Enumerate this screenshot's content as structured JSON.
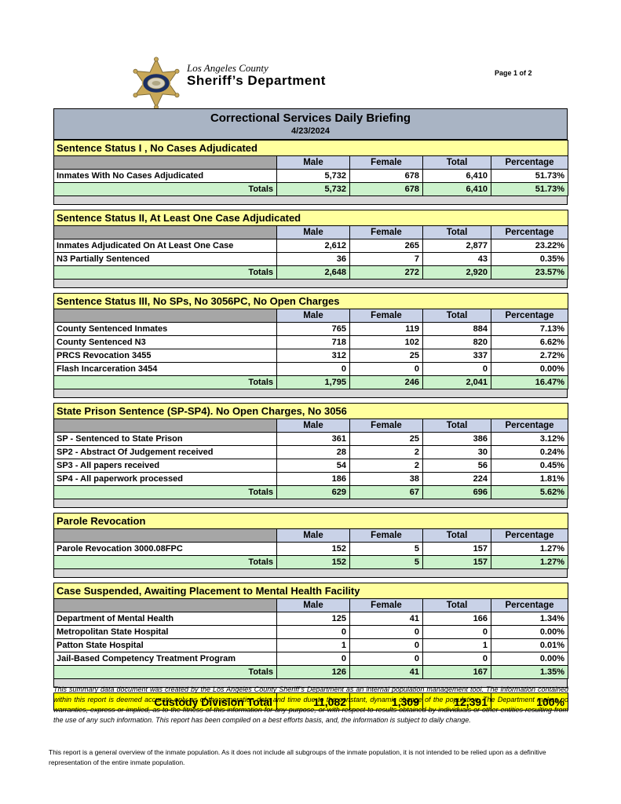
{
  "page_label": "Page 1 of 2",
  "letterhead": {
    "agency_line1": "Los Angeles County",
    "agency_line2": "Sheriff’s Department",
    "logo": "sheriff-star-badge"
  },
  "banner": {
    "title": "Correctional Services Daily Briefing",
    "date": "4/23/2024"
  },
  "columns": [
    "Male",
    "Female",
    "Total",
    "Percentage"
  ],
  "totals_label": "Totals",
  "sections": [
    {
      "title": "Sentence Status I , No Cases Adjudicated",
      "rows": [
        {
          "label": "Inmates With No Cases Adjudicated",
          "male": "5,732",
          "female": "678",
          "total": "6,410",
          "pct": "51.73%"
        }
      ],
      "totals": {
        "male": "5,732",
        "female": "678",
        "total": "6,410",
        "pct": "51.73%"
      }
    },
    {
      "title": "Sentence Status II, At Least One Case Adjudicated",
      "rows": [
        {
          "label": "Inmates Adjudicated On At Least One Case",
          "male": "2,612",
          "female": "265",
          "total": "2,877",
          "pct": "23.22%"
        },
        {
          "label": "N3 Partially Sentenced",
          "male": "36",
          "female": "7",
          "total": "43",
          "pct": "0.35%"
        }
      ],
      "totals": {
        "male": "2,648",
        "female": "272",
        "total": "2,920",
        "pct": "23.57%"
      }
    },
    {
      "title": "Sentence Status III, No SPs, No 3056PC, No Open Charges",
      "rows": [
        {
          "label": "County Sentenced Inmates",
          "male": "765",
          "female": "119",
          "total": "884",
          "pct": "7.13%"
        },
        {
          "label": "County Sentenced N3",
          "male": "718",
          "female": "102",
          "total": "820",
          "pct": "6.62%"
        },
        {
          "label": "PRCS Revocation 3455",
          "male": "312",
          "female": "25",
          "total": "337",
          "pct": "2.72%"
        },
        {
          "label": "Flash Incarceration 3454",
          "male": "0",
          "female": "0",
          "total": "0",
          "pct": "0.00%"
        }
      ],
      "totals": {
        "male": "1,795",
        "female": "246",
        "total": "2,041",
        "pct": "16.47%"
      }
    },
    {
      "title": "State Prison Sentence (SP-SP4). No Open Charges, No 3056",
      "rows": [
        {
          "label": "SP - Sentenced to State Prison",
          "male": "361",
          "female": "25",
          "total": "386",
          "pct": "3.12%"
        },
        {
          "label": "SP2 - Abstract Of Judgement received",
          "male": "28",
          "female": "2",
          "total": "30",
          "pct": "0.24%"
        },
        {
          "label": "SP3 - All papers received",
          "male": "54",
          "female": "2",
          "total": "56",
          "pct": "0.45%"
        },
        {
          "label": "SP4 - All paperwork processed",
          "male": "186",
          "female": "38",
          "total": "224",
          "pct": "1.81%"
        }
      ],
      "totals": {
        "male": "629",
        "female": "67",
        "total": "696",
        "pct": "5.62%"
      }
    },
    {
      "title": "Parole Revocation",
      "rows": [
        {
          "label": "Parole Revocation 3000.08FPC",
          "male": "152",
          "female": "5",
          "total": "157",
          "pct": "1.27%"
        }
      ],
      "totals": {
        "male": "152",
        "female": "5",
        "total": "157",
        "pct": "1.27%"
      }
    },
    {
      "title": "Case Suspended, Awaiting Placement to Mental Health Facility",
      "rows": [
        {
          "label": "Department of Mental Health",
          "male": "125",
          "female": "41",
          "total": "166",
          "pct": "1.34%"
        },
        {
          "label": "Metropolitan State Hospital",
          "male": "0",
          "female": "0",
          "total": "0",
          "pct": "0.00%"
        },
        {
          "label": "Patton State Hospital",
          "male": "1",
          "female": "0",
          "total": "1",
          "pct": "0.01%"
        },
        {
          "label": "Jail-Based Competency Treatment Program",
          "male": "0",
          "female": "0",
          "total": "0",
          "pct": "0.00%"
        }
      ],
      "totals": {
        "male": "126",
        "female": "41",
        "total": "167",
        "pct": "1.35%"
      }
    }
  ],
  "grand_total": {
    "label": "Custody Division Total",
    "male": "11,082",
    "female": "1,309",
    "total": "12,391",
    "pct": "100%"
  },
  "footers": {
    "disclaimer": "This summary data document was created by the Los Angeles County Sheriff’s Department as an internal population management tool.  The information contained within this report is deemed accurate only as of the generation date and time due to the constant, dynamic change of the population.  The Department makes no warranties, express or implied, as to the fitness of this information for any purpose, or with respect to results obtained by individuals or other entities resulting from the use of any such information.  This report has been compiled on a best efforts basis, and, the information is subject to daily change.",
    "overview_note": "This report is a general overview of the inmate population.  As it does not include all subgroups of the inmate population, it is not intended to be relied upon as a definitive representation of the entire inmate population."
  },
  "colors": {
    "banner_bg": "#a9b4c4",
    "title_bg": "#ffff9e",
    "colhead_bg": "#c9d2e7",
    "corner_bg": "#a6a6a6",
    "totals_bg": "#ccf2cc",
    "spacer_bg": "#d9d9d9",
    "grand_bg": "#ffff00",
    "star_gold": "#c9a858",
    "star_navy": "#1b2f63"
  }
}
